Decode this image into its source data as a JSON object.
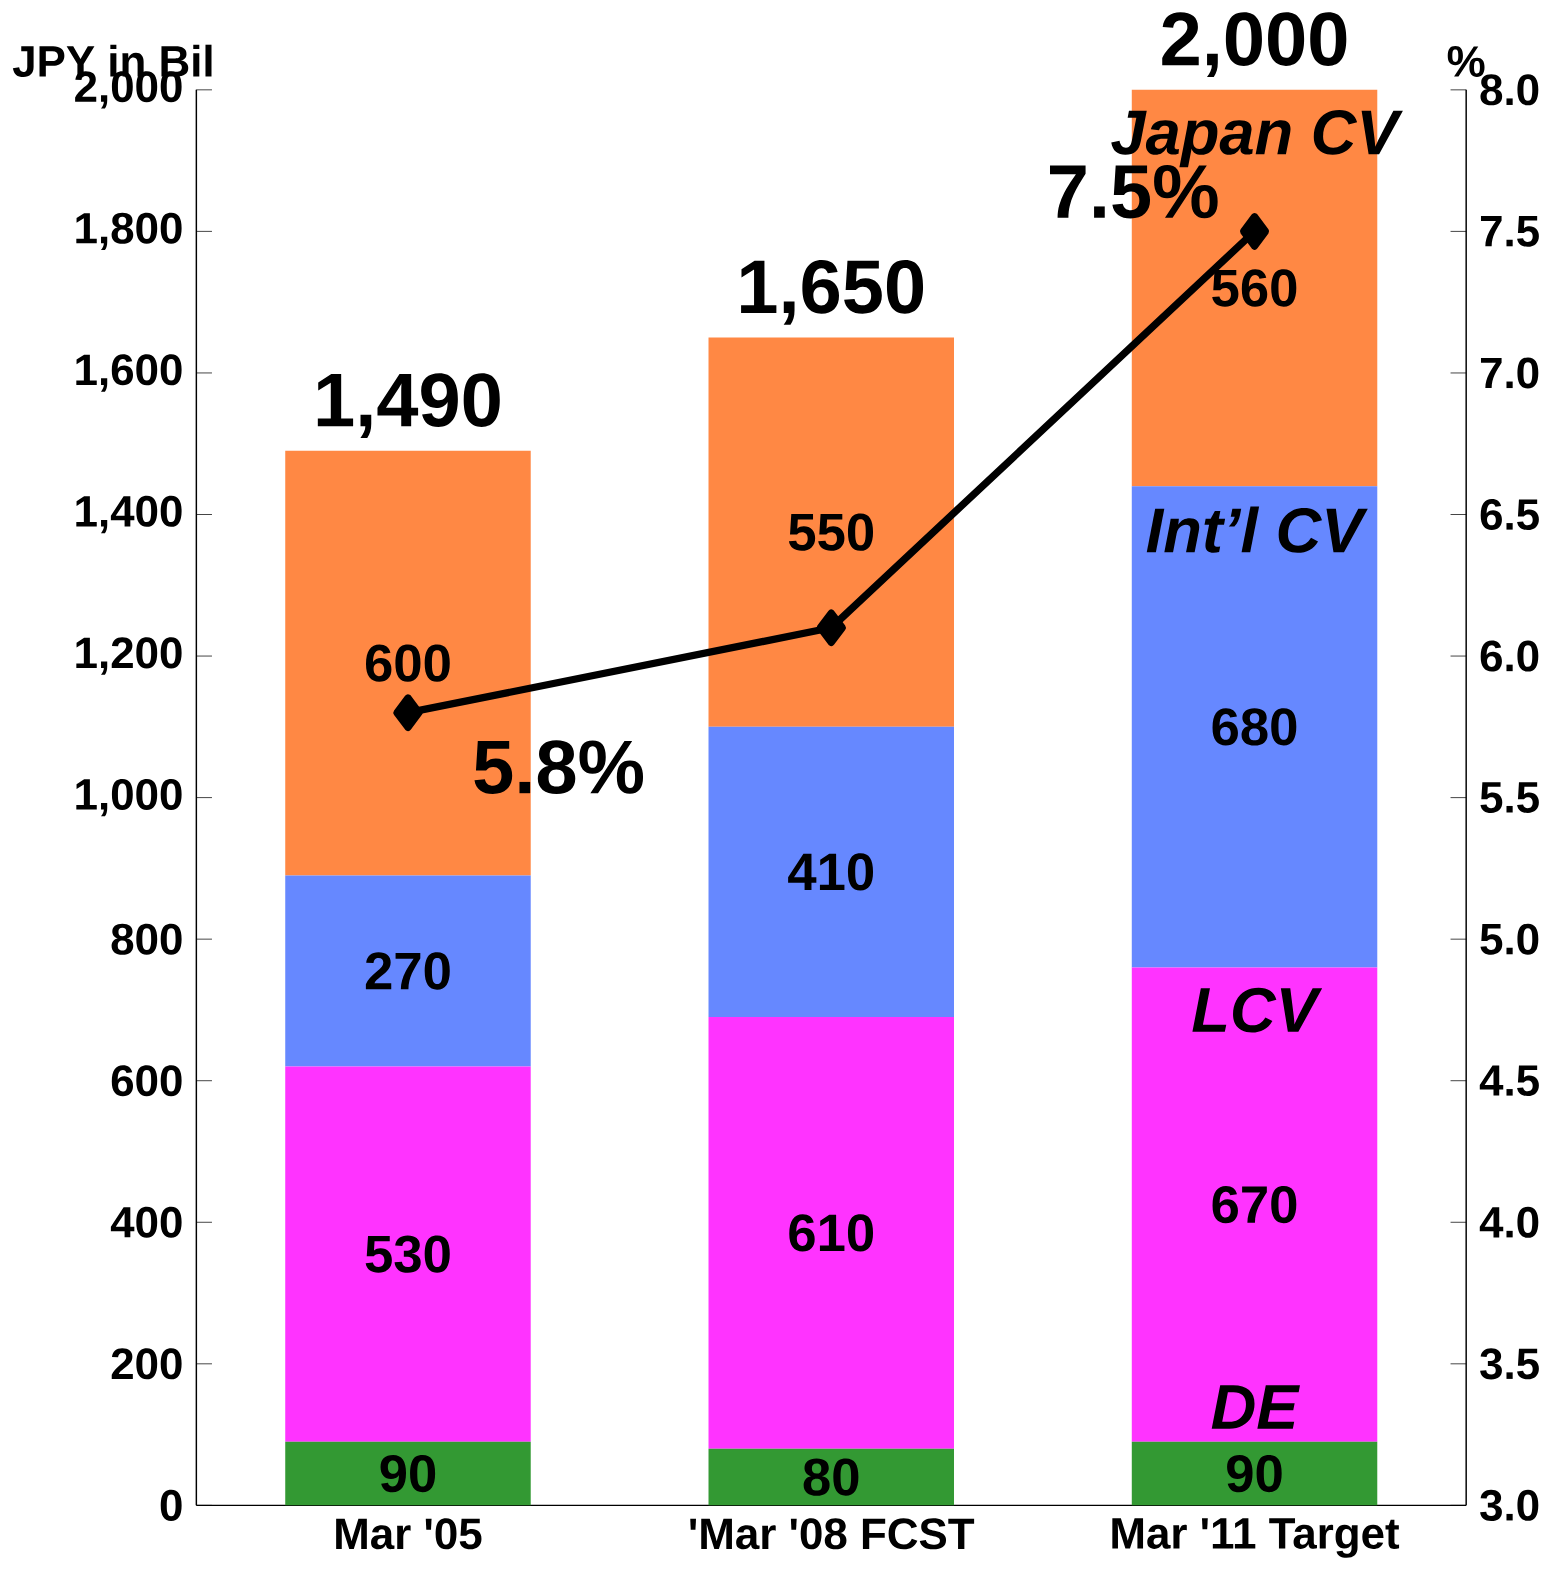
{
  "chart_data": {
    "type": "bar",
    "stacked": true,
    "ylabel": "JPY in Bil",
    "y2label": "%",
    "categories": [
      "Mar '05",
      "'Mar '08 FCST",
      "Mar '11 Target"
    ],
    "series": [
      {
        "name": "DE",
        "color": "#339933",
        "values": [
          90,
          80,
          90
        ]
      },
      {
        "name": "LCV",
        "color": "#ff33ff",
        "values": [
          530,
          610,
          670
        ]
      },
      {
        "name": "Int’l CV",
        "color": "#6688ff",
        "values": [
          270,
          410,
          680
        ]
      },
      {
        "name": "Japan CV",
        "color": "#ff8844",
        "values": [
          600,
          550,
          560
        ]
      },
      {
        "type": "line",
        "axis": "y2",
        "color": "#000000",
        "marker": "diamond",
        "values": [
          5.8,
          6.1,
          7.5
        ],
        "value_labels": [
          "5.8%",
          null,
          "7.5%"
        ]
      }
    ],
    "ylim": [
      0,
      2000
    ],
    "yticks": [
      0,
      200,
      400,
      600,
      800,
      {
        "value": 1000,
        "label": "1,000"
      },
      {
        "value": 1200,
        "label": "1,200"
      },
      {
        "value": 1400,
        "label": "1,400"
      },
      {
        "value": 1600,
        "label": "1,600"
      },
      {
        "value": 1800,
        "label": "1,800"
      },
      {
        "value": 2000,
        "label": "2,000"
      }
    ],
    "y2lim": [
      3,
      8
    ],
    "y2ticks": [
      {
        "value": 3,
        "label": "3.0"
      },
      {
        "value": 3.5,
        "label": "3.5"
      },
      {
        "value": 4,
        "label": "4.0"
      },
      {
        "value": 4.5,
        "label": "4.5"
      },
      {
        "value": 5,
        "label": "5.0"
      },
      {
        "value": 5.5,
        "label": "5.5"
      },
      {
        "value": 6,
        "label": "6.0"
      },
      {
        "value": 6.5,
        "label": "6.5"
      },
      {
        "value": 7,
        "label": "7.0"
      },
      {
        "value": 7.5,
        "label": "7.5"
      },
      {
        "value": 8,
        "label": "8.0"
      }
    ],
    "data_labels": true,
    "totals": [
      "1,490",
      "1,650",
      "2,000"
    ]
  }
}
